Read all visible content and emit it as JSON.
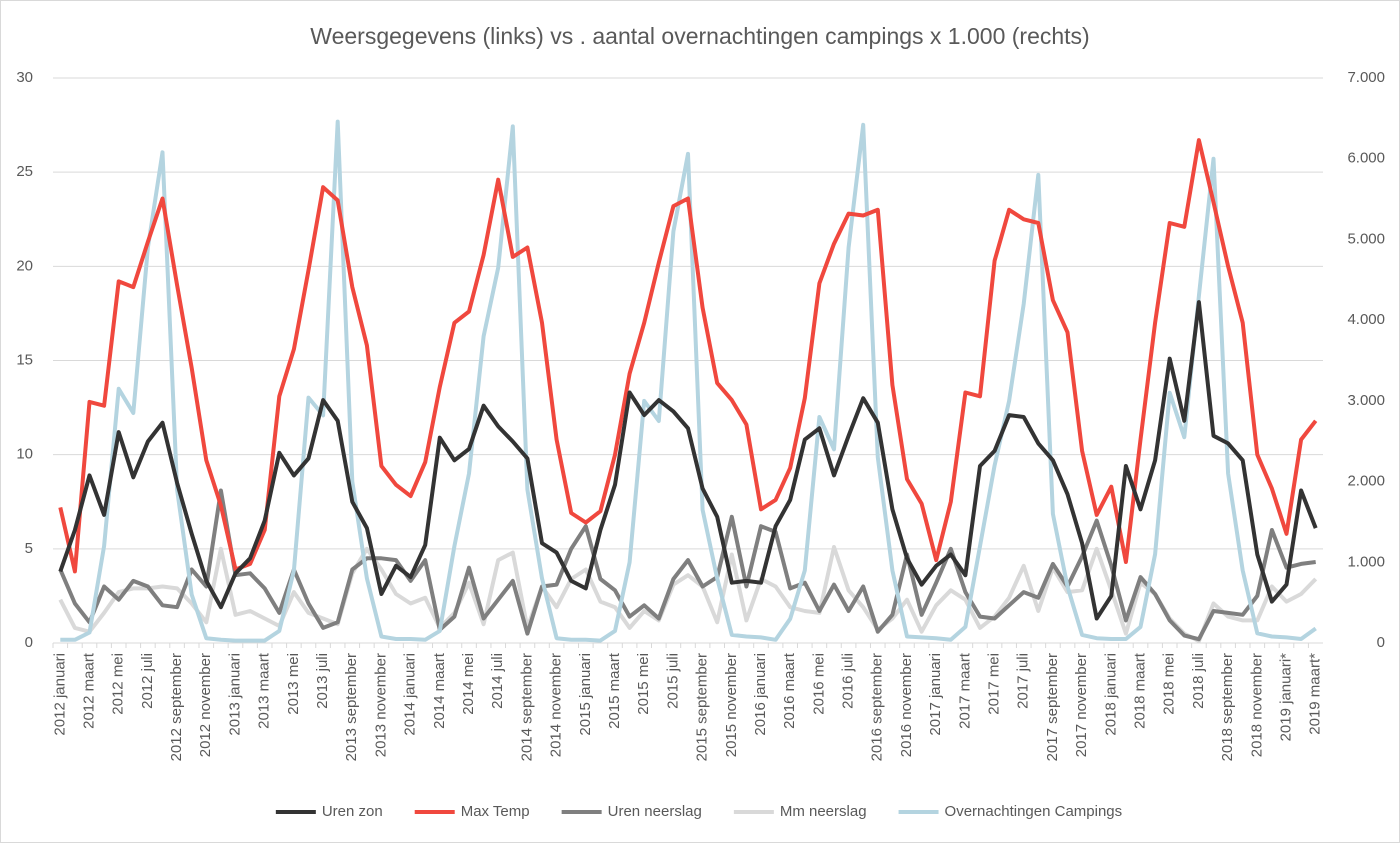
{
  "chart_data": {
    "type": "line",
    "title": "Weersgegevens (links)  vs . aantal overnachtingen campings x 1.000 (rechts)",
    "categories": [
      "2012 januari",
      null,
      "2012 maart",
      null,
      "2012 mei",
      null,
      "2012 juli",
      null,
      "2012 september",
      null,
      "2012 november",
      null,
      "2013 januari",
      null,
      "2013 maart",
      null,
      "2013 mei",
      null,
      "2013 juli",
      null,
      "2013 september",
      null,
      "2013 november",
      null,
      "2014 januari",
      null,
      "2014 maart",
      null,
      "2014 mei",
      null,
      "2014 juli",
      null,
      "2014 september",
      null,
      "2014 november",
      null,
      "2015 januari",
      null,
      "2015 maart",
      null,
      "2015 mei",
      null,
      "2015 juli",
      null,
      "2015 september",
      null,
      "2015 november",
      null,
      "2016 januari",
      null,
      "2016 maart",
      null,
      "2016 mei",
      null,
      "2016 juli",
      null,
      "2016 september",
      null,
      "2016 november",
      null,
      "2017 januari",
      null,
      "2017 maart",
      null,
      "2017 mei",
      null,
      "2017 juli",
      null,
      "2017 september",
      null,
      "2017 november",
      null,
      "2018 januari",
      null,
      "2018 maart",
      null,
      "2018 mei",
      null,
      "2018 juli",
      null,
      "2018 september",
      null,
      "2018 november",
      null,
      "2019 januari*",
      null,
      "2019 maart*"
    ],
    "series": [
      {
        "name": "Uren zon",
        "color": "#333333",
        "values": [
          3.8,
          6.0,
          8.9,
          6.8,
          11.2,
          8.8,
          10.7,
          11.7,
          8.5,
          5.8,
          3.3,
          1.9,
          3.7,
          4.5,
          6.5,
          10.1,
          8.9,
          9.8,
          12.9,
          11.8,
          7.5,
          6.1,
          2.6,
          4.1,
          3.5,
          5.2,
          10.9,
          9.7,
          10.3,
          12.6,
          11.5,
          10.7,
          9.8,
          5.3,
          4.8,
          3.3,
          2.9,
          6.0,
          8.4,
          13.3,
          12.1,
          12.9,
          12.3,
          11.4,
          8.2,
          6.7,
          3.2,
          3.3,
          3.2,
          6.2,
          7.6,
          10.8,
          11.4,
          8.9,
          11.0,
          13.0,
          11.7,
          7.1,
          4.5,
          3.1,
          4.1,
          4.7,
          3.6,
          9.4,
          10.2,
          12.1,
          12.0,
          10.6,
          9.7,
          7.9,
          5.3,
          1.3,
          2.5,
          9.4,
          7.1,
          9.7,
          15.1,
          11.8,
          18.1,
          11.0,
          10.6,
          9.7,
          4.7,
          2.2,
          3.1,
          8.1,
          6.1
        ]
      },
      {
        "name": "Max Temp",
        "color": "#f0483e",
        "values": [
          7.2,
          3.8,
          12.8,
          12.6,
          19.2,
          18.9,
          21.3,
          23.6,
          19.0,
          14.6,
          9.7,
          7.3,
          3.9,
          4.2,
          6.0,
          13.1,
          15.6,
          19.8,
          24.2,
          23.5,
          18.9,
          15.8,
          9.4,
          8.4,
          7.8,
          9.6,
          13.6,
          17.0,
          17.6,
          20.6,
          24.6,
          20.5,
          21.0,
          17.0,
          10.8,
          6.9,
          6.4,
          7.0,
          10.0,
          14.3,
          17.0,
          20.2,
          23.2,
          23.6,
          17.8,
          13.8,
          12.9,
          11.6,
          7.1,
          7.6,
          9.3,
          13.0,
          19.1,
          21.2,
          22.8,
          22.7,
          23.0,
          13.7,
          8.7,
          7.4,
          4.4,
          7.5,
          13.3,
          13.1,
          20.3,
          23.0,
          22.5,
          22.3,
          18.2,
          16.5,
          10.2,
          6.8,
          8.3,
          4.3,
          10.8,
          17.0,
          22.3,
          22.1,
          26.7,
          23.4,
          20.0,
          17.0,
          10.0,
          8.2,
          5.8,
          10.8,
          11.8
        ]
      },
      {
        "name": "Uren neerslag",
        "color": "#7f7f7f",
        "values": [
          3.9,
          2.1,
          1.1,
          3.0,
          2.3,
          3.3,
          3.0,
          2.0,
          1.9,
          3.9,
          3.0,
          8.1,
          3.6,
          3.7,
          2.9,
          1.6,
          3.9,
          2.1,
          0.8,
          1.1,
          3.9,
          4.5,
          4.5,
          4.4,
          3.3,
          4.4,
          0.7,
          1.4,
          4.0,
          1.3,
          2.3,
          3.3,
          0.5,
          3.0,
          3.1,
          5.0,
          6.2,
          3.4,
          2.8,
          1.4,
          2.0,
          1.3,
          3.4,
          4.4,
          3.0,
          3.5,
          6.7,
          3.0,
          6.2,
          5.9,
          2.9,
          3.2,
          1.7,
          3.1,
          1.7,
          3.0,
          0.6,
          1.5,
          4.7,
          1.5,
          3.2,
          5.0,
          2.7,
          1.4,
          1.3,
          2.0,
          2.7,
          2.4,
          4.2,
          3.0,
          4.6,
          6.5,
          4.1,
          1.2,
          3.5,
          2.6,
          1.2,
          0.4,
          0.2,
          1.7,
          1.6,
          1.5,
          2.5,
          6.0,
          4.0,
          4.2,
          4.3
        ]
      },
      {
        "name": "Mm neerslag",
        "color": "#d9d9d9",
        "values": [
          2.3,
          0.8,
          0.6,
          1.6,
          2.7,
          2.9,
          2.9,
          3.0,
          2.9,
          2.1,
          1.1,
          5.0,
          1.5,
          1.7,
          1.3,
          0.9,
          2.7,
          1.6,
          1.3,
          1.0,
          3.7,
          5.0,
          3.9,
          2.6,
          2.1,
          2.4,
          0.8,
          1.6,
          3.2,
          1.0,
          4.4,
          4.8,
          0.8,
          3.0,
          1.9,
          3.4,
          3.9,
          2.2,
          1.9,
          0.8,
          1.7,
          1.2,
          3.1,
          3.6,
          3.0,
          1.1,
          4.7,
          1.2,
          3.4,
          3.0,
          1.9,
          1.7,
          1.6,
          5.1,
          2.8,
          1.9,
          0.7,
          1.3,
          2.3,
          0.6,
          2.0,
          2.8,
          2.3,
          0.8,
          1.4,
          2.4,
          4.1,
          1.7,
          4.0,
          2.7,
          2.8,
          5.0,
          2.8,
          0.5,
          3.2,
          2.6,
          1.3,
          0.5,
          0.1,
          2.1,
          1.4,
          1.2,
          1.2,
          3.0,
          2.2,
          2.6,
          3.4
        ]
      },
      {
        "name": "Overnachtingen Campings",
        "color": "#b4d4e0",
        "axis": "y2",
        "values": [
          40,
          40,
          130,
          1200,
          3150,
          2850,
          4900,
          6080,
          1900,
          600,
          60,
          40,
          30,
          30,
          30,
          150,
          900,
          3040,
          2820,
          6460,
          2000,
          800,
          80,
          50,
          50,
          40,
          150,
          1200,
          2100,
          3800,
          4650,
          6400,
          1900,
          800,
          60,
          40,
          40,
          30,
          150,
          1000,
          3000,
          2750,
          5100,
          6060,
          1650,
          800,
          100,
          80,
          70,
          40,
          300,
          900,
          2800,
          2400,
          4900,
          6420,
          2300,
          900,
          80,
          70,
          60,
          40,
          200,
          1200,
          2200,
          3000,
          4200,
          5800,
          1600,
          700,
          100,
          60,
          50,
          50,
          200,
          1100,
          3100,
          2550,
          4300,
          6000,
          2100,
          900,
          120,
          80,
          70,
          50,
          180
        ]
      }
    ],
    "ylim": [
      0,
      30
    ],
    "yticks": [
      0,
      5,
      10,
      15,
      20,
      25,
      30
    ],
    "y2lim": [
      0,
      7000
    ],
    "y2ticks": [
      {
        "value": 0,
        "label": "0"
      },
      {
        "value": 1000,
        "label": "1.000"
      },
      {
        "value": 2000,
        "label": "2.000"
      },
      {
        "value": 3000,
        "label": "3.000"
      },
      {
        "value": 4000,
        "label": "4.000"
      },
      {
        "value": 5000,
        "label": "5.000"
      },
      {
        "value": 6000,
        "label": "6.000"
      },
      {
        "value": 7000,
        "label": "7.000"
      }
    ],
    "grid": true,
    "legend": "bottom"
  }
}
